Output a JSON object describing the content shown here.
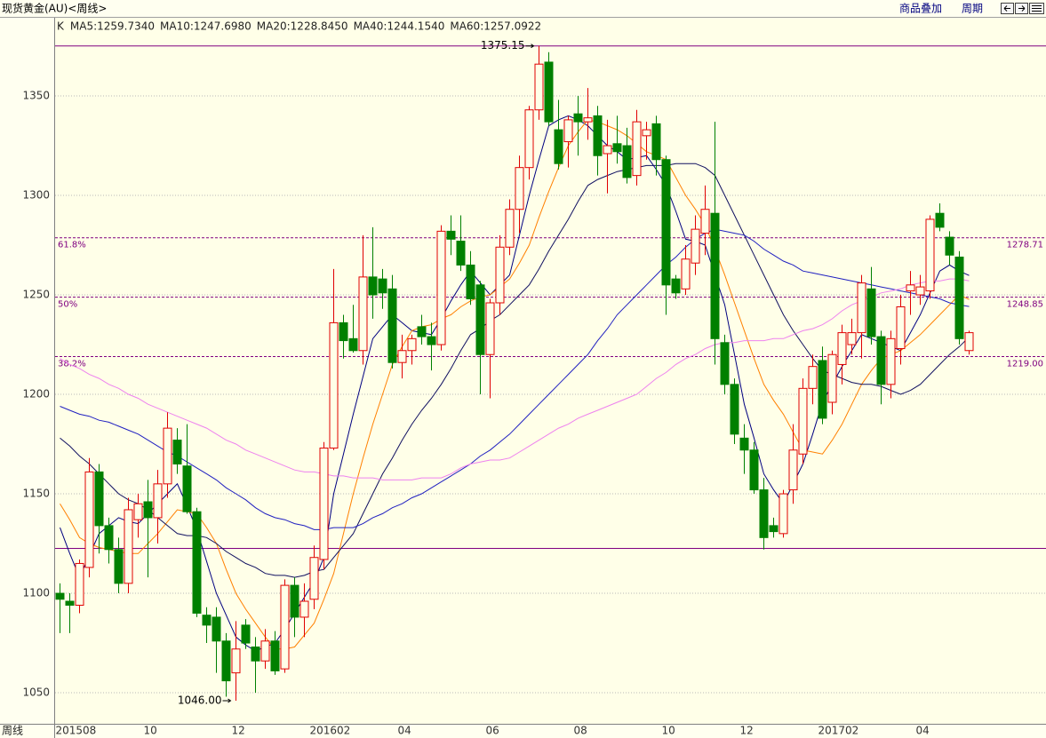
{
  "toolbar": {
    "overlay": "商品叠加",
    "period": "周期"
  },
  "chart_data": {
    "type": "candlestick",
    "title": "现货黄金(AU)<周线>",
    "candle_label": "K",
    "x_label": "周线",
    "categories": [
      "201508",
      null,
      null,
      null,
      null,
      null,
      null,
      null,
      null,
      "10",
      null,
      null,
      null,
      null,
      null,
      null,
      null,
      null,
      "12",
      null,
      null,
      null,
      null,
      null,
      null,
      null,
      "201602",
      null,
      null,
      null,
      null,
      null,
      null,
      null,
      null,
      "04",
      null,
      null,
      null,
      null,
      null,
      null,
      null,
      null,
      "06",
      null,
      null,
      null,
      null,
      null,
      null,
      null,
      null,
      "08",
      null,
      null,
      null,
      null,
      null,
      null,
      null,
      null,
      "10",
      null,
      null,
      null,
      null,
      null,
      null,
      null,
      "12",
      null,
      null,
      null,
      null,
      null,
      null,
      null,
      "201702",
      null,
      null,
      null,
      null,
      null,
      null,
      null,
      null,
      null,
      "04",
      null,
      null,
      null,
      null,
      null
    ],
    "open": [
      1100,
      1096,
      1094,
      1113,
      1161,
      1134,
      1122,
      1105,
      1137,
      1146,
      1138,
      1155,
      1177,
      1164,
      1141,
      1089,
      1088,
      1076,
      1060,
      1084,
      1073,
      1066,
      1076,
      1062,
      1104,
      1088,
      1097,
      1117,
      1173,
      1236,
      1228,
      1222,
      1259,
      1258,
      1253,
      1216,
      1222,
      1234,
      1229,
      1225,
      1282,
      1277,
      1265,
      1255,
      1220,
      1246,
      1274,
      1293,
      1314,
      1343,
      1367,
      1333,
      1327,
      1341,
      1337,
      1340,
      1321,
      1326,
      1325,
      1310,
      1330,
      1336,
      1318,
      1258,
      1253,
      1266,
      1281,
      1291,
      1226,
      1205,
      1178,
      1172,
      1152,
      1134,
      1130,
      1152,
      1170,
      1203,
      1217,
      1196,
      1215,
      1225,
      1231,
      1253,
      1229,
      1205,
      1223,
      1252,
      1250,
      1252,
      1291,
      1279,
      1269,
      1222
    ],
    "high": [
      1105,
      1100,
      1117,
      1168,
      1165,
      1138,
      1128,
      1148,
      1150,
      1157,
      1162,
      1191,
      1183,
      1185,
      1143,
      1093,
      1093,
      1080,
      1086,
      1087,
      1078,
      1082,
      1081,
      1107,
      1108,
      1105,
      1124,
      1176,
      1263,
      1240,
      1245,
      1280,
      1284,
      1263,
      1260,
      1230,
      1230,
      1240,
      1236,
      1285,
      1290,
      1290,
      1272,
      1257,
      1248,
      1280,
      1298,
      1320,
      1345,
      1375.15,
      1372,
      1348,
      1340,
      1350,
      1354,
      1345,
      1338,
      1340,
      1334,
      1343,
      1337,
      1340,
      1320,
      1260,
      1275,
      1290,
      1305,
      1337,
      1230,
      1208,
      1185,
      1176,
      1158,
      1138,
      1152,
      1185,
      1208,
      1220,
      1224,
      1222,
      1235,
      1238,
      1260,
      1264,
      1232,
      1232,
      1250,
      1262,
      1260,
      1290,
      1296,
      1282,
      1272,
      1232
    ],
    "low": [
      1080,
      1080,
      1090,
      1108,
      1120,
      1115,
      1100,
      1100,
      1128,
      1108,
      1125,
      1148,
      1160,
      1140,
      1088,
      1075,
      1060,
      1048,
      1046,
      1072,
      1050,
      1062,
      1059,
      1060,
      1078,
      1078,
      1092,
      1112,
      1172,
      1218,
      1221,
      1215,
      1238,
      1243,
      1213,
      1208,
      1215,
      1225,
      1212,
      1222,
      1270,
      1262,
      1245,
      1200,
      1198,
      1240,
      1270,
      1281,
      1308,
      1338,
      1335,
      1313,
      1314,
      1320,
      1328,
      1310,
      1301,
      1316,
      1306,
      1305,
      1318,
      1310,
      1240,
      1248,
      1250,
      1260,
      1270,
      1215,
      1200,
      1175,
      1160,
      1150,
      1122,
      1128,
      1128,
      1145,
      1165,
      1195,
      1185,
      1190,
      1205,
      1220,
      1218,
      1225,
      1195,
      1198,
      1215,
      1240,
      1245,
      1248,
      1282,
      1265,
      1225,
      1220
    ],
    "close": [
      1097,
      1094,
      1115,
      1161,
      1134,
      1122,
      1105,
      1142,
      1145,
      1138,
      1155,
      1183,
      1165,
      1141,
      1090,
      1084,
      1076,
      1056,
      1072,
      1075,
      1066,
      1076,
      1061,
      1104,
      1088,
      1096,
      1118,
      1173,
      1236,
      1227,
      1222,
      1259,
      1250,
      1251,
      1216,
      1222,
      1228,
      1229,
      1225,
      1282,
      1278,
      1265,
      1248,
      1220,
      1246,
      1274,
      1293,
      1314,
      1343,
      1366,
      1337,
      1316,
      1338,
      1337,
      1339,
      1320,
      1325,
      1322,
      1309,
      1337,
      1333,
      1318,
      1255,
      1251,
      1268,
      1283,
      1293,
      1228,
      1205,
      1180,
      1172,
      1152,
      1128,
      1131,
      1150,
      1172,
      1203,
      1214,
      1188,
      1220,
      1231,
      1231,
      1256,
      1229,
      1205,
      1228,
      1244,
      1255,
      1254,
      1288,
      1284,
      1270,
      1228,
      1231
    ],
    "up_color": "#e00000",
    "down_color": "#008000",
    "series": [
      {
        "name": "MA5:1259.7340",
        "color": "#000080",
        "values": [
          1133,
          1120,
          1108,
          1119,
          1130,
          1134,
          1138,
          1136,
          1135,
          1140,
          1145,
          1150,
          1155,
          1144,
          1132,
          1116,
          1100,
          1089,
          1078,
          1074,
          1071,
          1073,
          1075,
          1082,
          1090,
          1098,
          1106,
          1118,
          1150,
          1170,
          1190,
          1209,
          1228,
          1234,
          1240,
          1236,
          1232,
          1231,
          1230,
          1238,
          1247,
          1255,
          1262,
          1256,
          1250,
          1255,
          1260,
          1280,
          1300,
          1318,
          1335,
          1338,
          1340,
          1338,
          1335,
          1330,
          1325,
          1322,
          1318,
          1319,
          1320,
          1313,
          1305,
          1292,
          1278,
          1277,
          1275,
          1260,
          1245,
          1220,
          1195,
          1178,
          1160,
          1152,
          1145,
          1155,
          1165,
          1180,
          1196,
          1205,
          1214,
          1222,
          1230,
          1228,
          1226,
          1224,
          1222,
          1231,
          1240,
          1251,
          1262,
          1265,
          1262,
          1259.734
        ]
      },
      {
        "name": "MA10:1247.6980",
        "color": "#ff8000",
        "values": [
          1145,
          1137,
          1128,
          1125,
          1123,
          1122,
          1121,
          1120,
          1120,
          1125,
          1130,
          1136,
          1142,
          1141,
          1140,
          1133,
          1125,
          1112,
          1100,
          1092,
          1085,
          1078,
          1072,
          1072,
          1073,
          1079,
          1085,
          1097,
          1110,
          1130,
          1150,
          1168,
          1185,
          1200,
          1215,
          1224,
          1232,
          1234,
          1235,
          1238,
          1240,
          1244,
          1247,
          1249,
          1250,
          1254,
          1258,
          1266,
          1275,
          1289,
          1302,
          1314,
          1325,
          1332,
          1338,
          1337,
          1335,
          1333,
          1330,
          1326,
          1322,
          1320,
          1318,
          1309,
          1300,
          1293,
          1285,
          1273,
          1260,
          1246,
          1232,
          1218,
          1205,
          1197,
          1190,
          1181,
          1172,
          1171,
          1170,
          1177,
          1185,
          1195,
          1205,
          1212,
          1218,
          1220,
          1222,
          1226,
          1230,
          1235,
          1240,
          1245,
          1250,
          1247.698
        ]
      },
      {
        "name": "MA20:1228.8450",
        "color": "#101060",
        "values": [
          1178,
          1174,
          1169,
          1165,
          1160,
          1155,
          1150,
          1147,
          1145,
          1142,
          1138,
          1134,
          1130,
          1129,
          1129,
          1128,
          1125,
          1121,
          1118,
          1115,
          1113,
          1110,
          1109,
          1109,
          1108,
          1109,
          1111,
          1112,
          1118,
          1124,
          1130,
          1140,
          1150,
          1160,
          1168,
          1177,
          1185,
          1192,
          1198,
          1205,
          1213,
          1222,
          1230,
          1233,
          1237,
          1240,
          1245,
          1250,
          1255,
          1263,
          1272,
          1280,
          1288,
          1297,
          1305,
          1308,
          1310,
          1312,
          1313,
          1314,
          1315,
          1315,
          1315,
          1316,
          1316,
          1316,
          1314,
          1310,
          1300,
          1290,
          1280,
          1270,
          1260,
          1250,
          1240,
          1232,
          1225,
          1218,
          1212,
          1210,
          1208,
          1206,
          1205,
          1205,
          1204,
          1202,
          1200,
          1202,
          1205,
          1210,
          1215,
          1220,
          1224,
          1228.845
        ]
      },
      {
        "name": "MA40:1244.1540",
        "color": "#2020c0",
        "values": [
          1194,
          1192,
          1190,
          1189,
          1187,
          1186,
          1184,
          1182,
          1180,
          1177,
          1174,
          1171,
          1169,
          1166,
          1163,
          1160,
          1157,
          1153,
          1150,
          1147,
          1143,
          1140,
          1138,
          1137,
          1135,
          1134,
          1132,
          1132,
          1133,
          1133,
          1133,
          1135,
          1138,
          1140,
          1143,
          1145,
          1148,
          1150,
          1153,
          1156,
          1159,
          1162,
          1165,
          1169,
          1172,
          1176,
          1180,
          1185,
          1190,
          1195,
          1200,
          1205,
          1210,
          1215,
          1220,
          1227,
          1233,
          1240,
          1245,
          1250,
          1255,
          1260,
          1265,
          1269,
          1274,
          1278,
          1281,
          1283,
          1282,
          1281,
          1280,
          1277,
          1273,
          1270,
          1267,
          1265,
          1262,
          1261,
          1260,
          1259,
          1258,
          1257,
          1256,
          1255,
          1254,
          1253,
          1252,
          1251,
          1250,
          1249,
          1248,
          1246,
          1245,
          1244.154
        ]
      },
      {
        "name": "MA60:1257.0922",
        "color": "#ee82ee",
        "values": [
          1218,
          1215,
          1213,
          1210,
          1208,
          1205,
          1203,
          1200,
          1198,
          1195,
          1193,
          1191,
          1189,
          1187,
          1185,
          1183,
          1180,
          1177,
          1175,
          1172,
          1170,
          1168,
          1166,
          1164,
          1162,
          1161,
          1161,
          1160,
          1159,
          1159,
          1158,
          1158,
          1158,
          1157,
          1157,
          1157,
          1157,
          1158,
          1158,
          1158,
          1160,
          1163,
          1165,
          1166,
          1167,
          1167,
          1168,
          1171,
          1174,
          1177,
          1180,
          1183,
          1185,
          1188,
          1190,
          1192,
          1194,
          1196,
          1198,
          1200,
          1204,
          1208,
          1211,
          1215,
          1218,
          1220,
          1223,
          1225,
          1226,
          1226,
          1227,
          1227,
          1227,
          1228,
          1228,
          1230,
          1232,
          1233,
          1235,
          1238,
          1242,
          1245,
          1247,
          1249,
          1251,
          1252,
          1253,
          1255,
          1256,
          1257,
          1257,
          1258,
          1258,
          1257.0922
        ]
      }
    ],
    "ylim": [
      1034.4,
      1389.3
    ],
    "yticks": [
      1050,
      1100,
      1150,
      1200,
      1250,
      1300,
      1350
    ],
    "grid": true,
    "fibonacci": {
      "high": 1375.15,
      "low": 1122.55,
      "color": "#800080",
      "levels": [
        {
          "name": "61.8%",
          "value": 1278.71,
          "label": "1278.71"
        },
        {
          "name": "50%",
          "value": 1248.85,
          "label": "1248.85"
        },
        {
          "name": "38.2%",
          "value": 1219,
          "label": "1219.00"
        }
      ]
    },
    "annotations": [
      {
        "value": 1375.15,
        "label": "1375.15"
      },
      {
        "value": 1046,
        "label": "1046.00"
      }
    ]
  }
}
